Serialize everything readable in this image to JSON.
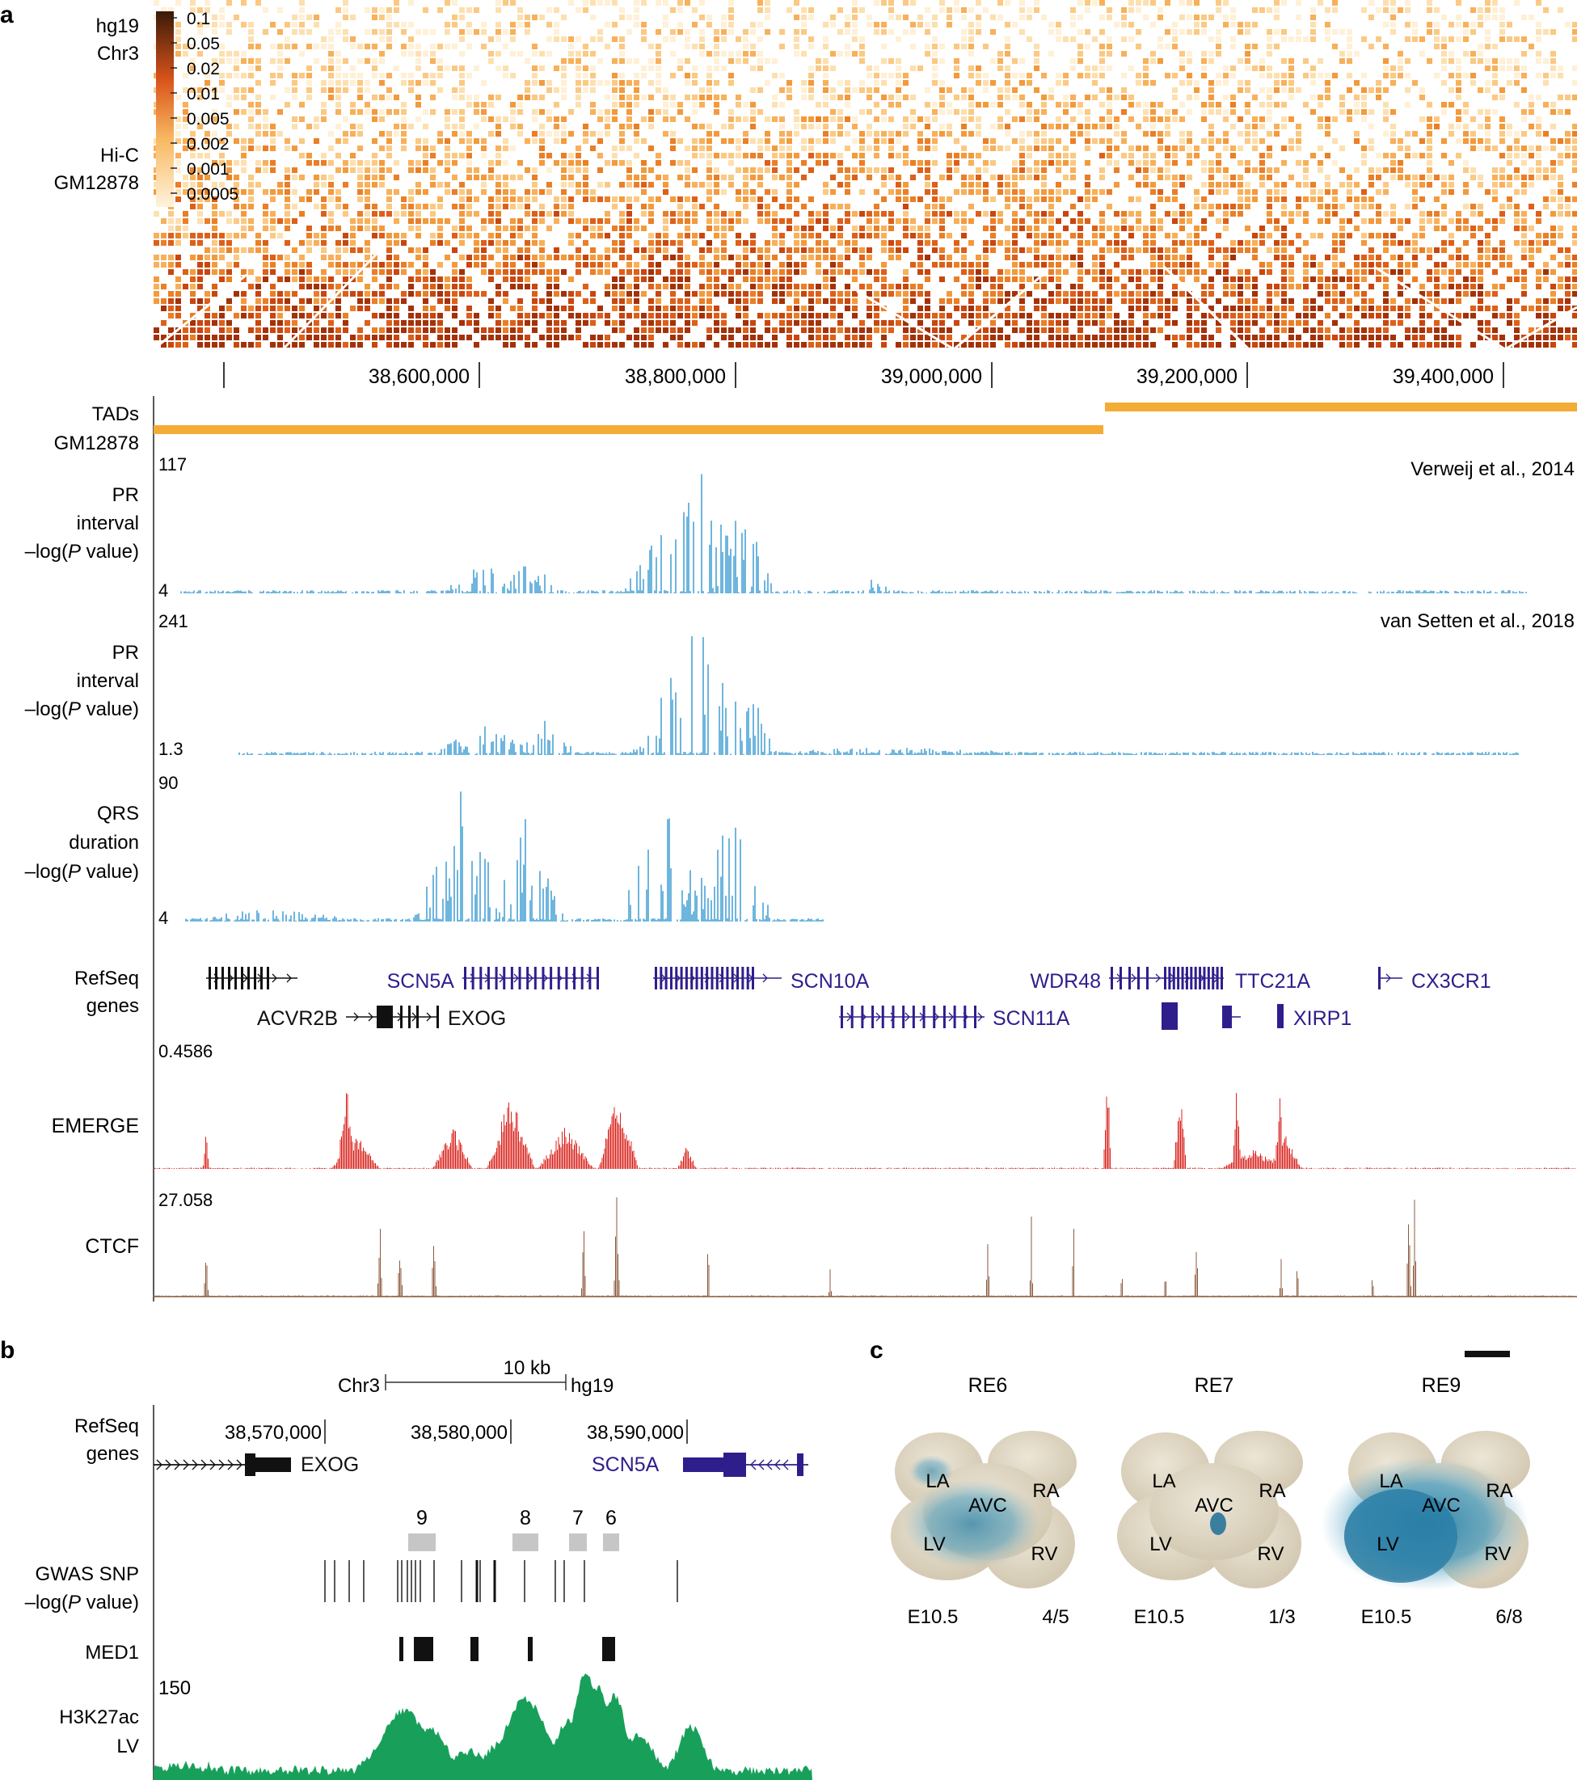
{
  "colors": {
    "hic_light": "#fde3b8",
    "hic_mid": "#f5a43c",
    "hic_dark": "#d2501a",
    "hic_darkest": "#3d1c0a",
    "tad": "#f3ac36",
    "gwas": "#4aa3d6",
    "gene_blue": "#2e1e8c",
    "gene_black": "#111111",
    "emerge": "#d9231d",
    "ctcf": "#8b5a3c",
    "h3k27ac": "#18a05a",
    "enhancer_box": "#c6c6c6",
    "stain": "#2e8ab0",
    "tissue": "#ddd4c2"
  },
  "panel_a": {
    "label": "a",
    "hic": {
      "genome": "hg19",
      "chrom": "Chr3",
      "track": "Hi-C",
      "cell": "GM12878",
      "scale_ticks": [
        "0.1",
        "0.05",
        "0.02",
        "0.01",
        "0.005",
        "0.002",
        "0.001",
        "0.0005"
      ]
    },
    "axis_ticks": [
      "38,600,000",
      "38,800,000",
      "39,000,000",
      "39,200,000",
      "39,400,000"
    ],
    "tads": {
      "line1": "TADs",
      "line2": "GM12878"
    },
    "gwas_tracks": [
      {
        "line1": "PR",
        "line2": "interval",
        "line3": "–log(",
        "p": "P",
        "line3b": " value)",
        "max": "117",
        "min": "4",
        "source": "Verweij et al., 2014"
      },
      {
        "line1": "PR",
        "line2": "interval",
        "line3": "–log(",
        "p": "P",
        "line3b": " value)",
        "max": "241",
        "min": "1.3",
        "source": "van Setten et al., 2018"
      },
      {
        "line1": "QRS",
        "line2": "duration",
        "line3": "–log(",
        "p": "P",
        "line3b": " value)",
        "max": "90",
        "min": "4",
        "source": ""
      }
    ],
    "refseq": {
      "line1": "RefSeq",
      "line2": "genes",
      "genes": [
        "SCN5A",
        "SCN10A",
        "WDR48",
        "TTC21A",
        "CX3CR1",
        "ACVR2B",
        "EXOG",
        "SCN11A",
        "XIRP1"
      ]
    },
    "emerge": {
      "label": "EMERGE",
      "max": "0.4586"
    },
    "ctcf": {
      "label": "CTCF",
      "max": "27.058"
    }
  },
  "panel_b": {
    "label": "b",
    "chrom": "Chr3",
    "scale": "10 kb",
    "genome": "hg19",
    "refseq": {
      "line1": "RefSeq",
      "line2": "genes"
    },
    "axis_ticks": [
      "38,570,000",
      "38,580,000",
      "38,590,000"
    ],
    "genes": [
      "EXOG",
      "SCN5A"
    ],
    "enhancers": [
      "9",
      "8",
      "7",
      "6"
    ],
    "gwas": {
      "line1": "GWAS SNP",
      "line2": "–log(",
      "p": "P",
      "line2b": " value)"
    },
    "med1": "MED1",
    "h3k27ac": {
      "line1": "H3K27ac",
      "line2": "LV",
      "max": "150"
    }
  },
  "panel_c": {
    "label": "c",
    "hearts": [
      {
        "name": "RE6",
        "stage": "E10.5",
        "ratio": "4/5",
        "labels": [
          "LA",
          "RA",
          "AVC",
          "LV",
          "RV"
        ],
        "stain": 0.5
      },
      {
        "name": "RE7",
        "stage": "E10.5",
        "ratio": "1/3",
        "labels": [
          "LA",
          "RA",
          "AVC",
          "LV",
          "RV"
        ],
        "stain": 0.15
      },
      {
        "name": "RE9",
        "stage": "E10.5",
        "ratio": "6/8",
        "labels": [
          "LA",
          "RA",
          "AVC",
          "LV",
          "RV"
        ],
        "stain": 0.9
      }
    ]
  }
}
